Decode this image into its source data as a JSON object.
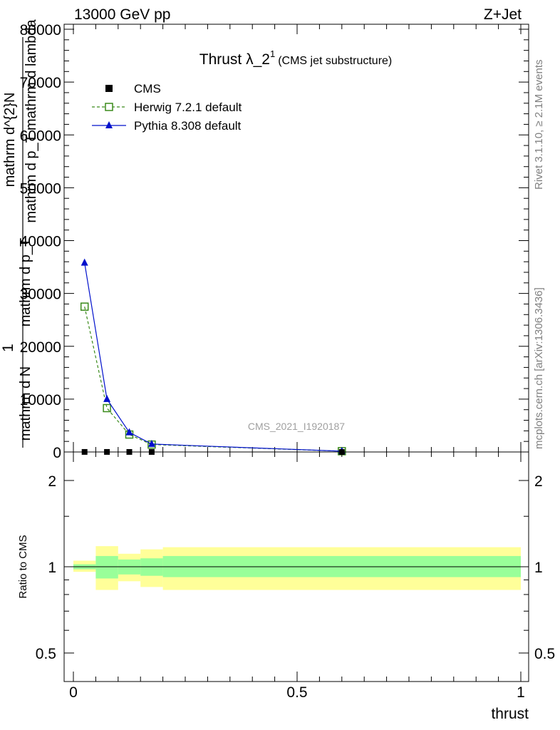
{
  "header": {
    "left": "13000 GeV pp",
    "right": "Z+Jet"
  },
  "side_labels": {
    "rivet": "Rivet 3.1.10, ≥ 2.1M events",
    "mcplots": "mcplots.cern.ch [arXiv:1306.3436]"
  },
  "chart_data": [
    {
      "type": "line",
      "title_main": "Thrust λ_2",
      "title_sup": "1",
      "title_sub": "(CMS jet substructure)",
      "analysis_id": "CMS_2021_I1920187",
      "ylabel": {
        "one": "1",
        "numerator": "mathrm d N",
        "frac_num": "mathrm d^{2}N",
        "frac_den": "mathrm d p_T mathrm d lambda",
        "denominator": "mathrm d p_T"
      },
      "xlim": [
        0,
        1
      ],
      "ylim": [
        0,
        80000
      ],
      "yticks": [
        0,
        10000,
        20000,
        30000,
        40000,
        50000,
        60000,
        70000,
        80000
      ],
      "ytick_labels": [
        "0",
        "10000",
        "20000",
        "30000",
        "40000",
        "50000",
        "60000",
        "70000",
        "80000"
      ],
      "series": [
        {
          "name": "CMS",
          "marker": "square",
          "color": "#000000",
          "x": [
            0.025,
            0.075,
            0.125,
            0.175,
            0.6
          ],
          "y": [
            10,
            8,
            6,
            4,
            1
          ]
        },
        {
          "name": "Herwig 7.2.1 default",
          "marker": "open-square",
          "color": "#3a8a1a",
          "dashed": true,
          "x": [
            0.025,
            0.075,
            0.125,
            0.175,
            0.6
          ],
          "y": [
            27500,
            8300,
            3300,
            1400,
            150
          ]
        },
        {
          "name": "Pythia 8.308 default",
          "marker": "triangle",
          "color": "#0010cc",
          "x": [
            0.025,
            0.075,
            0.125,
            0.175,
            0.6
          ],
          "y": [
            35800,
            10000,
            3700,
            1500,
            150
          ]
        }
      ]
    },
    {
      "type": "area",
      "ylabel": "Ratio to CMS",
      "xlabel": "thrust",
      "xlim": [
        0,
        1
      ],
      "ylim": [
        0.4,
        2.4
      ],
      "log_y": true,
      "yticks": [
        0.5,
        1,
        2
      ],
      "ytick_labels": [
        "0.5",
        "1",
        "2"
      ],
      "xticks": [
        0,
        0.5,
        1
      ],
      "xtick_labels": [
        "0",
        "0.5",
        "1"
      ],
      "reference": 1,
      "bands": {
        "edges": [
          0,
          0.05,
          0.1,
          0.15,
          0.2,
          1.0
        ],
        "inner_lo": [
          0.98,
          0.91,
          0.94,
          0.93,
          0.92
        ],
        "inner_hi": [
          1.02,
          1.09,
          1.06,
          1.07,
          1.09
        ],
        "outer_lo": [
          0.96,
          0.83,
          0.89,
          0.85,
          0.83
        ],
        "outer_hi": [
          1.05,
          1.18,
          1.11,
          1.15,
          1.17
        ],
        "inner_color": "#99ff99",
        "outer_color": "#ffff99"
      }
    }
  ]
}
